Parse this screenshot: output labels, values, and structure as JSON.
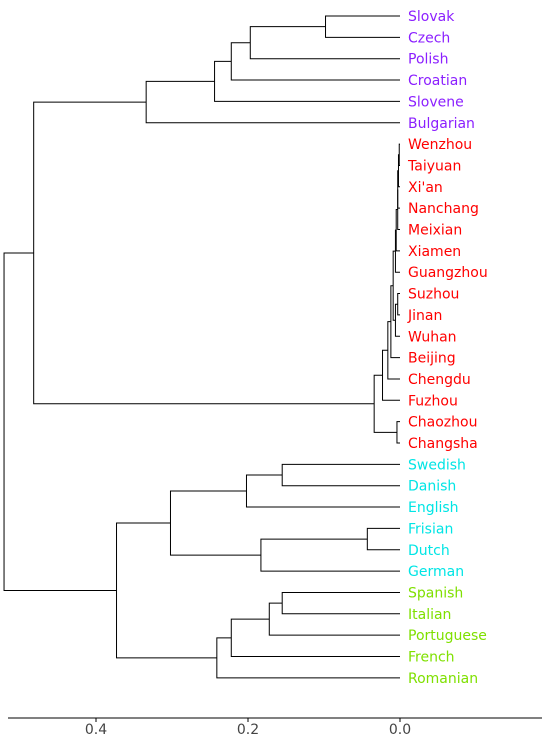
{
  "dendrogram": {
    "orientation": "left",
    "x_axis": {
      "ticks": [
        0.4,
        0.2,
        0.0
      ],
      "tick_labels": [
        "0.4",
        "0.2",
        "0.0"
      ]
    },
    "leaves": [
      {
        "label": "Slovak",
        "color": "#8b1fff"
      },
      {
        "label": "Czech",
        "color": "#8b1fff"
      },
      {
        "label": "Polish",
        "color": "#8b1fff"
      },
      {
        "label": "Croatian",
        "color": "#8b1fff"
      },
      {
        "label": "Slovene",
        "color": "#8b1fff"
      },
      {
        "label": "Bulgarian",
        "color": "#8b1fff"
      },
      {
        "label": "Wenzhou",
        "color": "#ff0000"
      },
      {
        "label": "Taiyuan",
        "color": "#ff0000"
      },
      {
        "label": "Xi'an",
        "color": "#ff0000"
      },
      {
        "label": "Nanchang",
        "color": "#ff0000"
      },
      {
        "label": "Meixian",
        "color": "#ff0000"
      },
      {
        "label": "Xiamen",
        "color": "#ff0000"
      },
      {
        "label": "Guangzhou",
        "color": "#ff0000"
      },
      {
        "label": "Suzhou",
        "color": "#ff0000"
      },
      {
        "label": "Jinan",
        "color": "#ff0000"
      },
      {
        "label": "Wuhan",
        "color": "#ff0000"
      },
      {
        "label": "Beijing",
        "color": "#ff0000"
      },
      {
        "label": "Chengdu",
        "color": "#ff0000"
      },
      {
        "label": "Fuzhou",
        "color": "#ff0000"
      },
      {
        "label": "Chaozhou",
        "color": "#ff0000"
      },
      {
        "label": "Changsha",
        "color": "#ff0000"
      },
      {
        "label": "Swedish",
        "color": "#00e5e5"
      },
      {
        "label": "Danish",
        "color": "#00e5e5"
      },
      {
        "label": "English",
        "color": "#00e5e5"
      },
      {
        "label": "Frisian",
        "color": "#00e5e5"
      },
      {
        "label": "Dutch",
        "color": "#00e5e5"
      },
      {
        "label": "German",
        "color": "#00e5e5"
      },
      {
        "label": "Spanish",
        "color": "#7fe000"
      },
      {
        "label": "Italian",
        "color": "#7fe000"
      },
      {
        "label": "Portuguese",
        "color": "#7fe000"
      },
      {
        "label": "French",
        "color": "#7fe000"
      },
      {
        "label": "Romanian",
        "color": "#7fe000"
      }
    ],
    "merges": [
      {
        "a": 0,
        "b": 1,
        "height": 0.098
      },
      {
        "a": 32,
        "b": 2,
        "height": 0.197
      },
      {
        "a": 33,
        "b": 3,
        "height": 0.222
      },
      {
        "a": 34,
        "b": 4,
        "height": 0.244
      },
      {
        "a": 35,
        "b": 5,
        "height": 0.334
      },
      {
        "a": 6,
        "b": 7,
        "height": 0.001
      },
      {
        "a": 37,
        "b": 8,
        "height": 0.002
      },
      {
        "a": 38,
        "b": 9,
        "height": 0.003
      },
      {
        "a": 39,
        "b": 10,
        "height": 0.003
      },
      {
        "a": 40,
        "b": 11,
        "height": 0.005
      },
      {
        "a": 41,
        "b": 12,
        "height": 0.006
      },
      {
        "a": 13,
        "b": 14,
        "height": 0.003
      },
      {
        "a": 43,
        "b": 15,
        "height": 0.006
      },
      {
        "a": 42,
        "b": 44,
        "height": 0.009
      },
      {
        "a": 45,
        "b": 16,
        "height": 0.012
      },
      {
        "a": 46,
        "b": 17,
        "height": 0.016
      },
      {
        "a": 47,
        "b": 18,
        "height": 0.023
      },
      {
        "a": 19,
        "b": 20,
        "height": 0.004
      },
      {
        "a": 48,
        "b": 49,
        "height": 0.034
      },
      {
        "a": 36,
        "b": 50,
        "height": 0.482
      },
      {
        "a": 21,
        "b": 22,
        "height": 0.155
      },
      {
        "a": 52,
        "b": 23,
        "height": 0.202
      },
      {
        "a": 24,
        "b": 25,
        "height": 0.043
      },
      {
        "a": 54,
        "b": 26,
        "height": 0.183
      },
      {
        "a": 53,
        "b": 55,
        "height": 0.302
      },
      {
        "a": 27,
        "b": 28,
        "height": 0.155
      },
      {
        "a": 57,
        "b": 29,
        "height": 0.172
      },
      {
        "a": 58,
        "b": 30,
        "height": 0.222
      },
      {
        "a": 59,
        "b": 31,
        "height": 0.241
      },
      {
        "a": 56,
        "b": 60,
        "height": 0.373
      },
      {
        "a": 51,
        "b": 61,
        "height": 0.521
      }
    ]
  }
}
